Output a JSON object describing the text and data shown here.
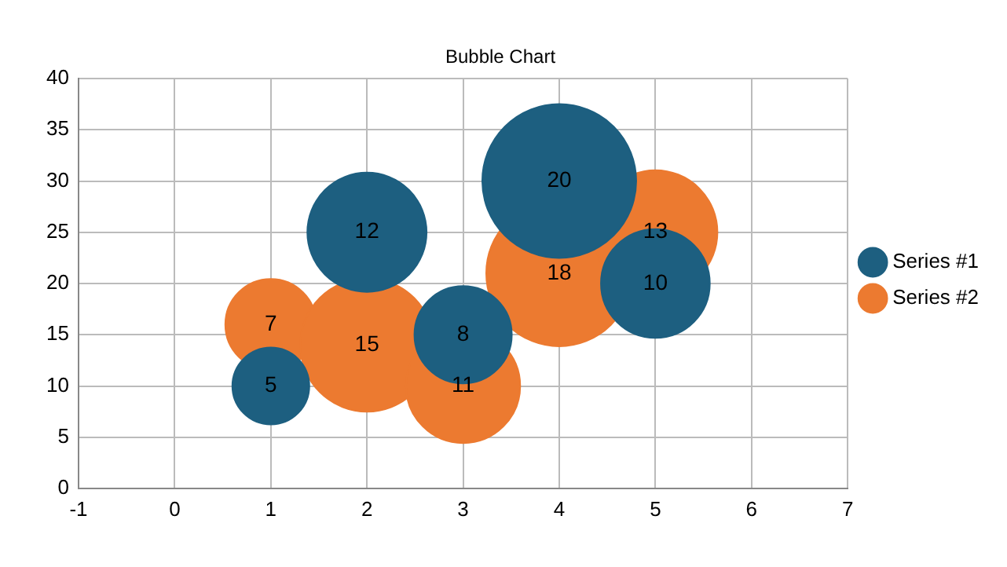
{
  "chart_data": {
    "type": "bubble",
    "title": "Bubble Chart",
    "x": [
      1,
      2,
      3,
      4,
      5
    ],
    "series": [
      {
        "name": "Series #1",
        "color": "#1d5f80",
        "values": [
          10,
          25,
          15,
          30,
          20
        ],
        "sizes": [
          5,
          12,
          8,
          20,
          10
        ],
        "value_labels": [
          "5",
          "12",
          "8",
          "20",
          "10"
        ]
      },
      {
        "name": "Series #2",
        "color": "#ec7a30",
        "values": [
          16,
          14,
          10,
          21,
          25
        ],
        "sizes": [
          7,
          15,
          11,
          18,
          13
        ],
        "value_labels": [
          "7",
          "15",
          "11",
          "18",
          "13"
        ]
      }
    ],
    "xlim": [
      -1,
      7
    ],
    "xticks": [
      -1,
      0,
      1,
      2,
      3,
      4,
      5,
      6,
      7
    ],
    "ylim": [
      0,
      40
    ],
    "yticks": [
      0,
      5,
      10,
      15,
      20,
      25,
      30,
      35,
      40
    ],
    "grid": true,
    "legend": "right"
  }
}
